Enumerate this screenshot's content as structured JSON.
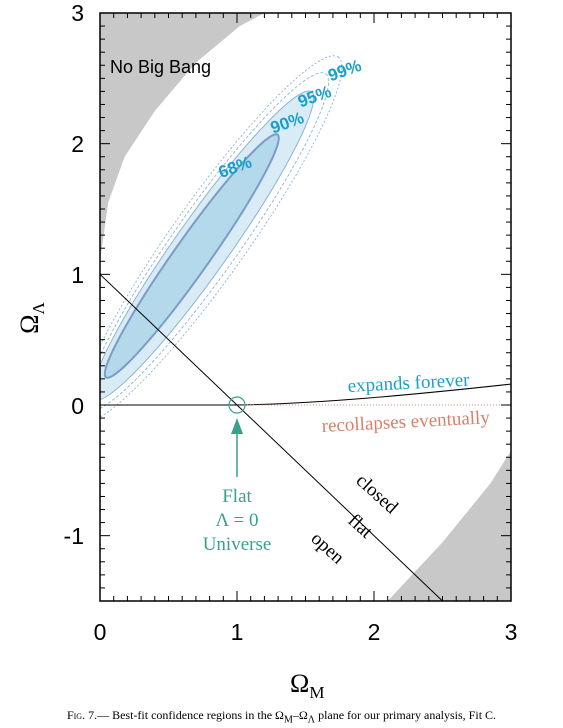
{
  "chart_data": {
    "type": "contour",
    "xlabel": "Ω",
    "xlabel_sub": "M",
    "ylabel": "Ω",
    "ylabel_sub": "Λ",
    "xlim": [
      0,
      3
    ],
    "ylim": [
      -1.5,
      3
    ],
    "x_ticks": [
      "0",
      "1",
      "2",
      "3"
    ],
    "x_tick_values": [
      0,
      1,
      2,
      3
    ],
    "y_ticks": [
      "3",
      "2",
      "1",
      "0",
      "-1"
    ],
    "y_tick_values": [
      3,
      2,
      1,
      0,
      -1
    ],
    "contours": [
      {
        "level": "68%",
        "label_at": [
          1.0,
          1.78
        ],
        "center": [
          0.67,
          1.14
        ],
        "semi_major": 1.12,
        "semi_minor": 0.13,
        "angle_deg": 56
      },
      {
        "level": "90%",
        "label_at": [
          1.38,
          2.12
        ],
        "center": [
          0.75,
          1.22
        ],
        "semi_major": 1.42,
        "semi_minor": 0.2,
        "angle_deg": 56
      },
      {
        "level": "95%",
        "label_at": [
          1.58,
          2.32
        ],
        "center": [
          0.78,
          1.25
        ],
        "semi_major": 1.55,
        "semi_minor": 0.24,
        "angle_deg": 56
      },
      {
        "level": "99%",
        "label_at": [
          1.8,
          2.52
        ],
        "center": [
          0.8,
          1.27
        ],
        "semi_major": 1.68,
        "semi_minor": 0.28,
        "angle_deg": 56
      }
    ],
    "flat_line": [
      [
        0,
        1
      ],
      [
        2.5,
        -1.5
      ]
    ],
    "expansion_boundary": [
      [
        0,
        0
      ],
      [
        1,
        0
      ],
      [
        2,
        0.05
      ],
      [
        3,
        0.16
      ]
    ],
    "flat_lambda0_point": [
      1,
      0
    ],
    "annotations": {
      "no_big_bang": "No Big Bang",
      "expands_forever": "expands forever",
      "recollapses_eventually": "recollapses eventually",
      "closed": "closed",
      "flat": "flat",
      "open": "open",
      "flat_universe_lines": [
        "Flat",
        "Λ = 0",
        "Universe"
      ]
    },
    "colors": {
      "contour_68_fill": "#b3d9eb",
      "contour_90_fill": "#d9ecf5",
      "contour_68_stroke": "#7a9cc6",
      "contour_label": "#1a9fcc",
      "shaded_region": "#c8c8c8",
      "flat_universe_annotation": "#3aa08a",
      "expands_forever": "#1a9fcc",
      "recollapses_eventually": "#d9806a"
    }
  },
  "caption": {
    "fig": "Fig. 7.—",
    "text_before": " Best-fit confidence regions in the Ω",
    "sub1": "M",
    "text_mid": "–Ω",
    "sub2": "Λ",
    "text_after": " plane for our primary analysis, Fit C."
  }
}
